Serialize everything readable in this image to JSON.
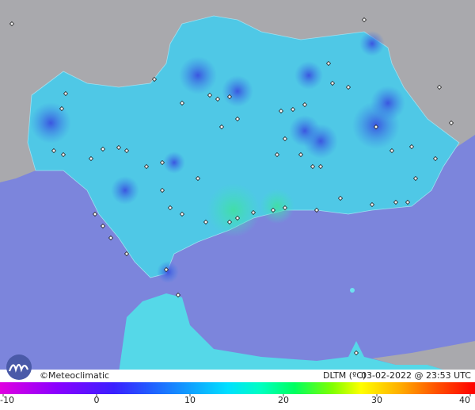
{
  "credit": "©Meteoclimatic",
  "variable": "DLTM (ºC)",
  "timestamp": "03-02-2022 @ 23:53 UTC",
  "colorbar": {
    "range": [
      -10,
      40
    ],
    "ticks": [
      -10,
      0,
      10,
      20,
      30,
      40
    ]
  }
}
